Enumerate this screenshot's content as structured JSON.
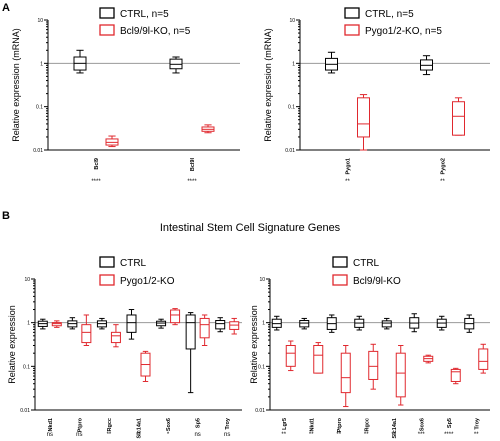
{
  "panel_labels": {
    "a": "A",
    "b": "B"
  },
  "section_title": "Intestinal Stem Cell Signature Genes",
  "colors": {
    "control": "#000000",
    "knockout": "#e0282e",
    "reference_line": "#9a9a9a"
  },
  "chart_data": [
    {
      "type": "box",
      "ylabel": "Relative expression (mRNA)",
      "yscale": "log",
      "ylim": [
        0.01,
        10
      ],
      "yticks": [
        "10",
        "1",
        "0.1",
        "0.01"
      ],
      "reference_line": 1,
      "legend": [
        "CTRL, n=5",
        "Bcl9/9l-KO, n=5"
      ],
      "series": [
        {
          "name": "CTRL, n=5",
          "color": "#000000",
          "boxes": [
            {
              "category": "Bcl9",
              "min": 0.6,
              "q1": 0.7,
              "median": 1.0,
              "q3": 1.4,
              "max": 2.0
            },
            {
              "category": "Bcl9l",
              "min": 0.6,
              "q1": 0.75,
              "median": 0.95,
              "q3": 1.25,
              "max": 1.4
            }
          ]
        },
        {
          "name": "Bcl9/9l-KO, n=5",
          "color": "#e0282e",
          "boxes": [
            {
              "category": "Bcl9",
              "min": 0.012,
              "q1": 0.013,
              "median": 0.015,
              "q3": 0.018,
              "max": 0.021
            },
            {
              "category": "Bcl9l",
              "min": 0.025,
              "q1": 0.027,
              "median": 0.03,
              "q3": 0.034,
              "max": 0.038
            }
          ]
        }
      ],
      "categories": [
        "Bcl9",
        "Bcl9l"
      ],
      "significance": [
        "****",
        "****"
      ]
    },
    {
      "type": "box",
      "ylabel": "Relative expression (mRNA)",
      "yscale": "log",
      "ylim": [
        0.01,
        10
      ],
      "yticks": [
        "10",
        "1",
        "0.1",
        "0.01"
      ],
      "reference_line": 1,
      "legend": [
        "CTRL, n=5",
        "Pygo1/2-KO, n=5"
      ],
      "series": [
        {
          "name": "CTRL, n=5",
          "color": "#000000",
          "boxes": [
            {
              "category": "Pygo1",
              "min": 0.6,
              "q1": 0.7,
              "median": 0.95,
              "q3": 1.3,
              "max": 1.8
            },
            {
              "category": "Pygo2",
              "min": 0.55,
              "q1": 0.7,
              "median": 0.9,
              "q3": 1.2,
              "max": 1.5
            }
          ]
        },
        {
          "name": "Pygo1/2-KO, n=5",
          "color": "#e0282e",
          "boxes": [
            {
              "category": "Pygo1",
              "min": 0.01,
              "q1": 0.02,
              "median": 0.04,
              "q3": 0.16,
              "max": 0.19
            },
            {
              "category": "Pygo2",
              "min": 0.022,
              "q1": 0.022,
              "median": 0.06,
              "q3": 0.13,
              "max": 0.16
            }
          ]
        }
      ],
      "categories": [
        "Pygo1",
        "Pygo2"
      ],
      "significance": [
        "**",
        "**"
      ]
    },
    {
      "type": "box",
      "ylabel": "Relative expression",
      "yscale": "log",
      "ylim": [
        0.01,
        10
      ],
      "yticks": [
        "10",
        "1",
        "0.1",
        "0.01"
      ],
      "reference_line": 1,
      "legend": [
        "CTRL",
        "Pygo1/2-KO"
      ],
      "series": [
        {
          "name": "CTRL",
          "color": "#000000",
          "boxes": [
            {
              "category": "Nkd1",
              "min": 0.72,
              "q1": 0.82,
              "median": 0.95,
              "q3": 1.08,
              "max": 1.2
            },
            {
              "category": "Ptpro",
              "min": 0.72,
              "q1": 0.8,
              "median": 0.95,
              "q3": 1.1,
              "max": 1.3
            },
            {
              "category": "Rgcc",
              "min": 0.72,
              "q1": 0.8,
              "median": 0.95,
              "q3": 1.1,
              "max": 1.25
            },
            {
              "category": "Slc14a1",
              "min": 0.42,
              "q1": 0.6,
              "median": 1.0,
              "q3": 1.5,
              "max": 2.0
            },
            {
              "category": "Sox6",
              "min": 0.75,
              "q1": 0.85,
              "median": 0.98,
              "q3": 1.08,
              "max": 1.2
            },
            {
              "category": "Sp5",
              "min": 0.025,
              "q1": 0.25,
              "median": 1.0,
              "q3": 1.5,
              "max": 1.7
            },
            {
              "category": "Troy",
              "min": 0.62,
              "q1": 0.72,
              "median": 0.95,
              "q3": 1.12,
              "max": 1.3
            }
          ]
        },
        {
          "name": "Pygo1/2-KO",
          "color": "#e0282e",
          "boxes": [
            {
              "category": "Nkd1",
              "min": 0.78,
              "q1": 0.85,
              "median": 0.95,
              "q3": 1.0,
              "max": 1.1
            },
            {
              "category": "Ptpro",
              "min": 0.3,
              "q1": 0.35,
              "median": 0.6,
              "q3": 0.9,
              "max": 1.5
            },
            {
              "category": "Rgcc",
              "min": 0.28,
              "q1": 0.35,
              "median": 0.5,
              "q3": 0.6,
              "max": 0.9
            },
            {
              "category": "Slc14a1",
              "min": 0.045,
              "q1": 0.06,
              "median": 0.11,
              "q3": 0.2,
              "max": 0.22
            },
            {
              "category": "Sox6",
              "min": 0.9,
              "q1": 1.0,
              "median": 1.5,
              "q3": 1.95,
              "max": 2.1
            },
            {
              "category": "Sp5",
              "min": 0.3,
              "q1": 0.45,
              "median": 0.9,
              "q3": 1.25,
              "max": 1.5
            },
            {
              "category": "Troy",
              "min": 0.55,
              "q1": 0.7,
              "median": 0.88,
              "q3": 1.05,
              "max": 1.25
            }
          ]
        }
      ],
      "categories": [
        "Nkd1",
        "Ptpro",
        "Rgcc",
        "Slc14a1",
        "Sox6",
        "Sp5",
        "Troy"
      ],
      "significance": [
        "ns",
        "ns",
        "**",
        "**",
        "*",
        "ns",
        "ns"
      ]
    },
    {
      "type": "box",
      "ylabel": "Relative expression",
      "yscale": "log",
      "ylim": [
        0.01,
        10
      ],
      "yticks": [
        "10",
        "1",
        "0.1",
        "0.01"
      ],
      "reference_line": 1,
      "legend": [
        "CTRL",
        "Bcl9/9l-KO"
      ],
      "series": [
        {
          "name": "CTRL",
          "color": "#000000",
          "boxes": [
            {
              "category": "Lgr5",
              "min": 0.68,
              "q1": 0.78,
              "median": 0.95,
              "q3": 1.2,
              "max": 1.4
            },
            {
              "category": "Nkd1",
              "min": 0.72,
              "q1": 0.8,
              "median": 0.98,
              "q3": 1.12,
              "max": 1.25
            },
            {
              "category": "Ptpro",
              "min": 0.6,
              "q1": 0.7,
              "median": 0.95,
              "q3": 1.3,
              "max": 1.5
            },
            {
              "category": "Rgcc",
              "min": 0.68,
              "q1": 0.78,
              "median": 0.98,
              "q3": 1.2,
              "max": 1.4
            },
            {
              "category": "Slc14a1",
              "min": 0.72,
              "q1": 0.8,
              "median": 0.98,
              "q3": 1.1,
              "max": 1.25
            },
            {
              "category": "Sox6",
              "min": 0.62,
              "q1": 0.75,
              "median": 0.98,
              "q3": 1.3,
              "max": 1.6
            },
            {
              "category": "Sp5",
              "min": 0.68,
              "q1": 0.78,
              "median": 0.98,
              "q3": 1.2,
              "max": 1.4
            },
            {
              "category": "Troy",
              "min": 0.6,
              "q1": 0.72,
              "median": 0.95,
              "q3": 1.25,
              "max": 1.5
            }
          ]
        },
        {
          "name": "Bcl9/9l-KO",
          "color": "#e0282e",
          "boxes": [
            {
              "category": "Lgr5",
              "min": 0.08,
              "q1": 0.1,
              "median": 0.2,
              "q3": 0.3,
              "max": 0.38
            },
            {
              "category": "Nkd1",
              "min": 0.07,
              "q1": 0.07,
              "median": 0.18,
              "q3": 0.3,
              "max": 0.35
            },
            {
              "category": "Ptpro",
              "min": 0.012,
              "q1": 0.025,
              "median": 0.055,
              "q3": 0.2,
              "max": 0.3
            },
            {
              "category": "Rgcc",
              "min": 0.03,
              "q1": 0.05,
              "median": 0.1,
              "q3": 0.22,
              "max": 0.32
            },
            {
              "category": "Slc14a1",
              "min": 0.013,
              "q1": 0.02,
              "median": 0.07,
              "q3": 0.2,
              "max": 0.3
            },
            {
              "category": "Sox6",
              "min": 0.12,
              "q1": 0.13,
              "median": 0.15,
              "q3": 0.17,
              "max": 0.18
            },
            {
              "category": "Sp5",
              "min": 0.04,
              "q1": 0.045,
              "median": 0.075,
              "q3": 0.085,
              "max": 0.09
            },
            {
              "category": "Troy",
              "min": 0.07,
              "q1": 0.085,
              "median": 0.13,
              "q3": 0.25,
              "max": 0.32
            }
          ]
        }
      ],
      "categories": [
        "Lgr5",
        "Nkd1",
        "Ptpro",
        "Rgcc",
        "Slc14a1",
        "Sox6",
        "Sp5",
        "Troy"
      ],
      "significance": [
        "**",
        "**",
        "**",
        "**",
        "**",
        "***",
        "****",
        "**"
      ]
    }
  ]
}
